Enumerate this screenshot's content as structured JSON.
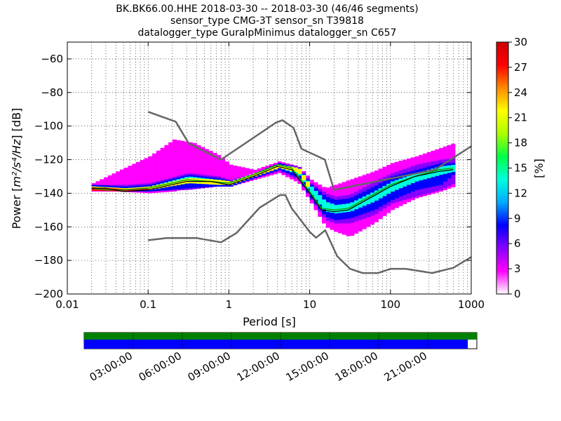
{
  "title_lines": [
    "BK.BK66.00.HHE   2018-03-30 -- 2018-03-30  (46/46 segments)",
    "sensor_type CMG-3T sensor_sn T39818",
    "datalogger_type GuralpMinimus datalogger_sn C657"
  ],
  "chart_data": {
    "type": "heatmap",
    "xlabel": "Period [s]",
    "ylabel_text": "Power [",
    "ylabel_math": "m²/s⁴/Hz",
    "ylabel_unit": "] [dB]",
    "xscale": "log",
    "xlim": [
      0.01,
      1000
    ],
    "ylim": [
      -200,
      -50
    ],
    "x_tick_labels": [
      "0.01",
      "0.1",
      "1",
      "10",
      "100",
      "1000"
    ],
    "x_ticks": [
      0.01,
      0.1,
      1,
      10,
      100,
      1000
    ],
    "y_ticks": [
      -200,
      -180,
      -160,
      -140,
      -120,
      -100,
      -80,
      -60
    ],
    "y_tick_labels": [
      "−200",
      "−180",
      "−160",
      "−140",
      "−120",
      "−100",
      "−80",
      "−60"
    ],
    "grid": true,
    "colorbar": {
      "label": "[%]",
      "range": [
        0,
        30
      ],
      "ticks": [
        0,
        3,
        6,
        9,
        12,
        15,
        18,
        21,
        24,
        27,
        30
      ],
      "colormap": [
        "#ffffff",
        "#ff00ff",
        "#8800ff",
        "#0000ff",
        "#00aaff",
        "#00ffdd",
        "#00ff44",
        "#aaff00",
        "#ffff00",
        "#ff8800",
        "#ff0000",
        "#cc0000"
      ]
    },
    "noise_models": {
      "new_high_noise_model": {
        "color": "#666666",
        "points": [
          [
            0.1,
            -91.5
          ],
          [
            0.22,
            -97.4
          ],
          [
            0.32,
            -110.5
          ],
          [
            0.8,
            -120
          ],
          [
            3.8,
            -98
          ],
          [
            4.6,
            -96.5
          ],
          [
            6.3,
            -101
          ],
          [
            7.9,
            -113.5
          ],
          [
            15.4,
            -120
          ],
          [
            20,
            -138
          ],
          [
            354.8,
            -126
          ],
          [
            1000,
            -112
          ]
        ]
      },
      "new_low_noise_model": {
        "color": "#666666",
        "points": [
          [
            0.1,
            -168
          ],
          [
            0.17,
            -166.7
          ],
          [
            0.4,
            -166.7
          ],
          [
            0.8,
            -169.2
          ],
          [
            1.24,
            -163.7
          ],
          [
            2.4,
            -148.6
          ],
          [
            4.3,
            -141.1
          ],
          [
            5.0,
            -141.1
          ],
          [
            6.0,
            -149
          ],
          [
            10,
            -163
          ],
          [
            12,
            -166.5
          ],
          [
            15.6,
            -162
          ],
          [
            21.9,
            -177.5
          ],
          [
            31.6,
            -185
          ],
          [
            45,
            -187.5
          ],
          [
            70,
            -187.5
          ],
          [
            101,
            -185
          ],
          [
            154,
            -185
          ],
          [
            328,
            -187.5
          ],
          [
            600,
            -184.4
          ],
          [
            1000,
            -178
          ]
        ]
      }
    },
    "mode_curve": {
      "color": "#000000",
      "points": [
        [
          0.02,
          -137
        ],
        [
          0.03,
          -137
        ],
        [
          0.05,
          -139
        ],
        [
          0.1,
          -138
        ],
        [
          0.3,
          -133
        ],
        [
          0.6,
          -133
        ],
        [
          1,
          -135
        ],
        [
          2,
          -130
        ],
        [
          4,
          -124
        ],
        [
          6,
          -126
        ],
        [
          10,
          -140
        ],
        [
          14,
          -150
        ],
        [
          20,
          -151
        ],
        [
          30,
          -150
        ],
        [
          60,
          -142
        ],
        [
          100,
          -136
        ],
        [
          200,
          -130
        ],
        [
          400,
          -127
        ],
        [
          600,
          -126
        ]
      ]
    },
    "mean_curve": {
      "color": "#00aa00",
      "points": [
        [
          0.02,
          -137
        ],
        [
          0.03,
          -138
        ],
        [
          0.05,
          -138
        ],
        [
          0.1,
          -137
        ],
        [
          0.3,
          -132
        ],
        [
          0.6,
          -133
        ],
        [
          1,
          -134
        ],
        [
          2,
          -129
        ],
        [
          4,
          -123
        ],
        [
          6,
          -125
        ],
        [
          10,
          -139
        ],
        [
          14,
          -149
        ],
        [
          20,
          -150
        ],
        [
          30,
          -149
        ],
        [
          60,
          -141
        ],
        [
          100,
          -135
        ],
        [
          200,
          -130
        ],
        [
          400,
          -126
        ],
        [
          600,
          -125
        ]
      ]
    },
    "ppsd_bands": [
      {
        "color": "#ff00ff",
        "level": 2,
        "points": [
          [
            0.02,
            -134,
            -139
          ],
          [
            0.04,
            -127,
            -139
          ],
          [
            0.1,
            -118,
            -140
          ],
          [
            0.2,
            -108,
            -139
          ],
          [
            0.35,
            -110,
            -136
          ],
          [
            0.7,
            -117,
            -135
          ],
          [
            1.0,
            -123,
            -136
          ],
          [
            2.0,
            -126,
            -132
          ],
          [
            4,
            -121,
            -128
          ],
          [
            7,
            -124,
            -134
          ],
          [
            10,
            -132,
            -146
          ],
          [
            15,
            -137,
            -160
          ],
          [
            20,
            -135,
            -163
          ],
          [
            30,
            -132,
            -166
          ],
          [
            60,
            -127,
            -158
          ],
          [
            100,
            -122,
            -150
          ],
          [
            200,
            -118,
            -143
          ],
          [
            400,
            -113,
            -139
          ],
          [
            600,
            -110,
            -136
          ]
        ]
      },
      {
        "color": "#8800ff",
        "level": 4,
        "points": [
          [
            0.02,
            -135,
            -138
          ],
          [
            0.05,
            -135,
            -139
          ],
          [
            0.1,
            -134,
            -139
          ],
          [
            0.3,
            -128,
            -138
          ],
          [
            0.7,
            -130,
            -136
          ],
          [
            1.0,
            -132,
            -136
          ],
          [
            2,
            -128,
            -131
          ],
          [
            4,
            -122,
            -127
          ],
          [
            7,
            -124,
            -132
          ],
          [
            10,
            -134,
            -144
          ],
          [
            15,
            -140,
            -156
          ],
          [
            20,
            -142,
            -158
          ],
          [
            30,
            -141,
            -158
          ],
          [
            60,
            -133,
            -153
          ],
          [
            100,
            -128,
            -146
          ],
          [
            200,
            -123,
            -142
          ],
          [
            400,
            -120,
            -138
          ],
          [
            600,
            -119,
            -134
          ]
        ]
      },
      {
        "color": "#0000ff",
        "level": 7,
        "points": [
          [
            0.02,
            -135,
            -138
          ],
          [
            0.05,
            -136,
            -139
          ],
          [
            0.1,
            -135,
            -139
          ],
          [
            0.3,
            -129,
            -137
          ],
          [
            0.7,
            -131,
            -136
          ],
          [
            1.0,
            -133,
            -136
          ],
          [
            2,
            -128,
            -131
          ],
          [
            4,
            -122,
            -126
          ],
          [
            7,
            -125,
            -131
          ],
          [
            10,
            -135,
            -143
          ],
          [
            15,
            -142,
            -154
          ],
          [
            20,
            -144,
            -156
          ],
          [
            30,
            -143,
            -155
          ],
          [
            60,
            -136,
            -150
          ],
          [
            100,
            -130,
            -144
          ],
          [
            200,
            -126,
            -138
          ],
          [
            400,
            -122,
            -135
          ],
          [
            600,
            -122,
            -128
          ]
        ]
      },
      {
        "color": "#00ffdd",
        "level": 14,
        "points": [
          [
            0.02,
            -136,
            -138
          ],
          [
            0.05,
            -137,
            -139
          ],
          [
            0.1,
            -136,
            -138
          ],
          [
            0.3,
            -130,
            -134
          ],
          [
            0.7,
            -132,
            -135
          ],
          [
            1.0,
            -133,
            -135
          ],
          [
            2,
            -128,
            -130
          ],
          [
            4,
            -123,
            -125
          ],
          [
            7,
            -125,
            -129
          ],
          [
            10,
            -136,
            -141
          ],
          [
            15,
            -145,
            -151
          ],
          [
            20,
            -147,
            -152
          ],
          [
            30,
            -146,
            -151
          ],
          [
            60,
            -139,
            -145
          ],
          [
            100,
            -133,
            -139
          ],
          [
            200,
            -128,
            -133
          ],
          [
            400,
            -124,
            -129
          ],
          [
            600,
            -123,
            -127
          ]
        ]
      },
      {
        "color": "#ffff00",
        "level": 23,
        "points": [
          [
            0.02,
            -136,
            -138
          ],
          [
            0.05,
            -137,
            -139
          ],
          [
            0.1,
            -136,
            -138
          ],
          [
            0.3,
            -131,
            -134
          ],
          [
            0.7,
            -132,
            -135
          ],
          [
            1.0,
            -133,
            -135
          ],
          [
            2,
            -128,
            -130
          ],
          [
            4,
            -123,
            -125
          ],
          [
            7,
            -125,
            -128
          ],
          [
            10,
            -137,
            -140
          ]
        ]
      },
      {
        "color": "#ff0000",
        "level": 30,
        "points": [
          [
            0.02,
            -136.5,
            -138.5
          ],
          [
            0.05,
            -137.5,
            -139
          ],
          [
            0.1,
            -136.5,
            -138
          ]
        ]
      }
    ]
  },
  "time_bar": {
    "coverage_fraction": 0.977,
    "top_color": "#008000",
    "bottom_color": "#0000ff",
    "tick_labels": [
      "03:00:00",
      "06:00:00",
      "09:00:00",
      "12:00:00",
      "15:00:00",
      "18:00:00",
      "21:00:00"
    ],
    "tick_hours": [
      3,
      6,
      9,
      12,
      15,
      18,
      21
    ]
  }
}
